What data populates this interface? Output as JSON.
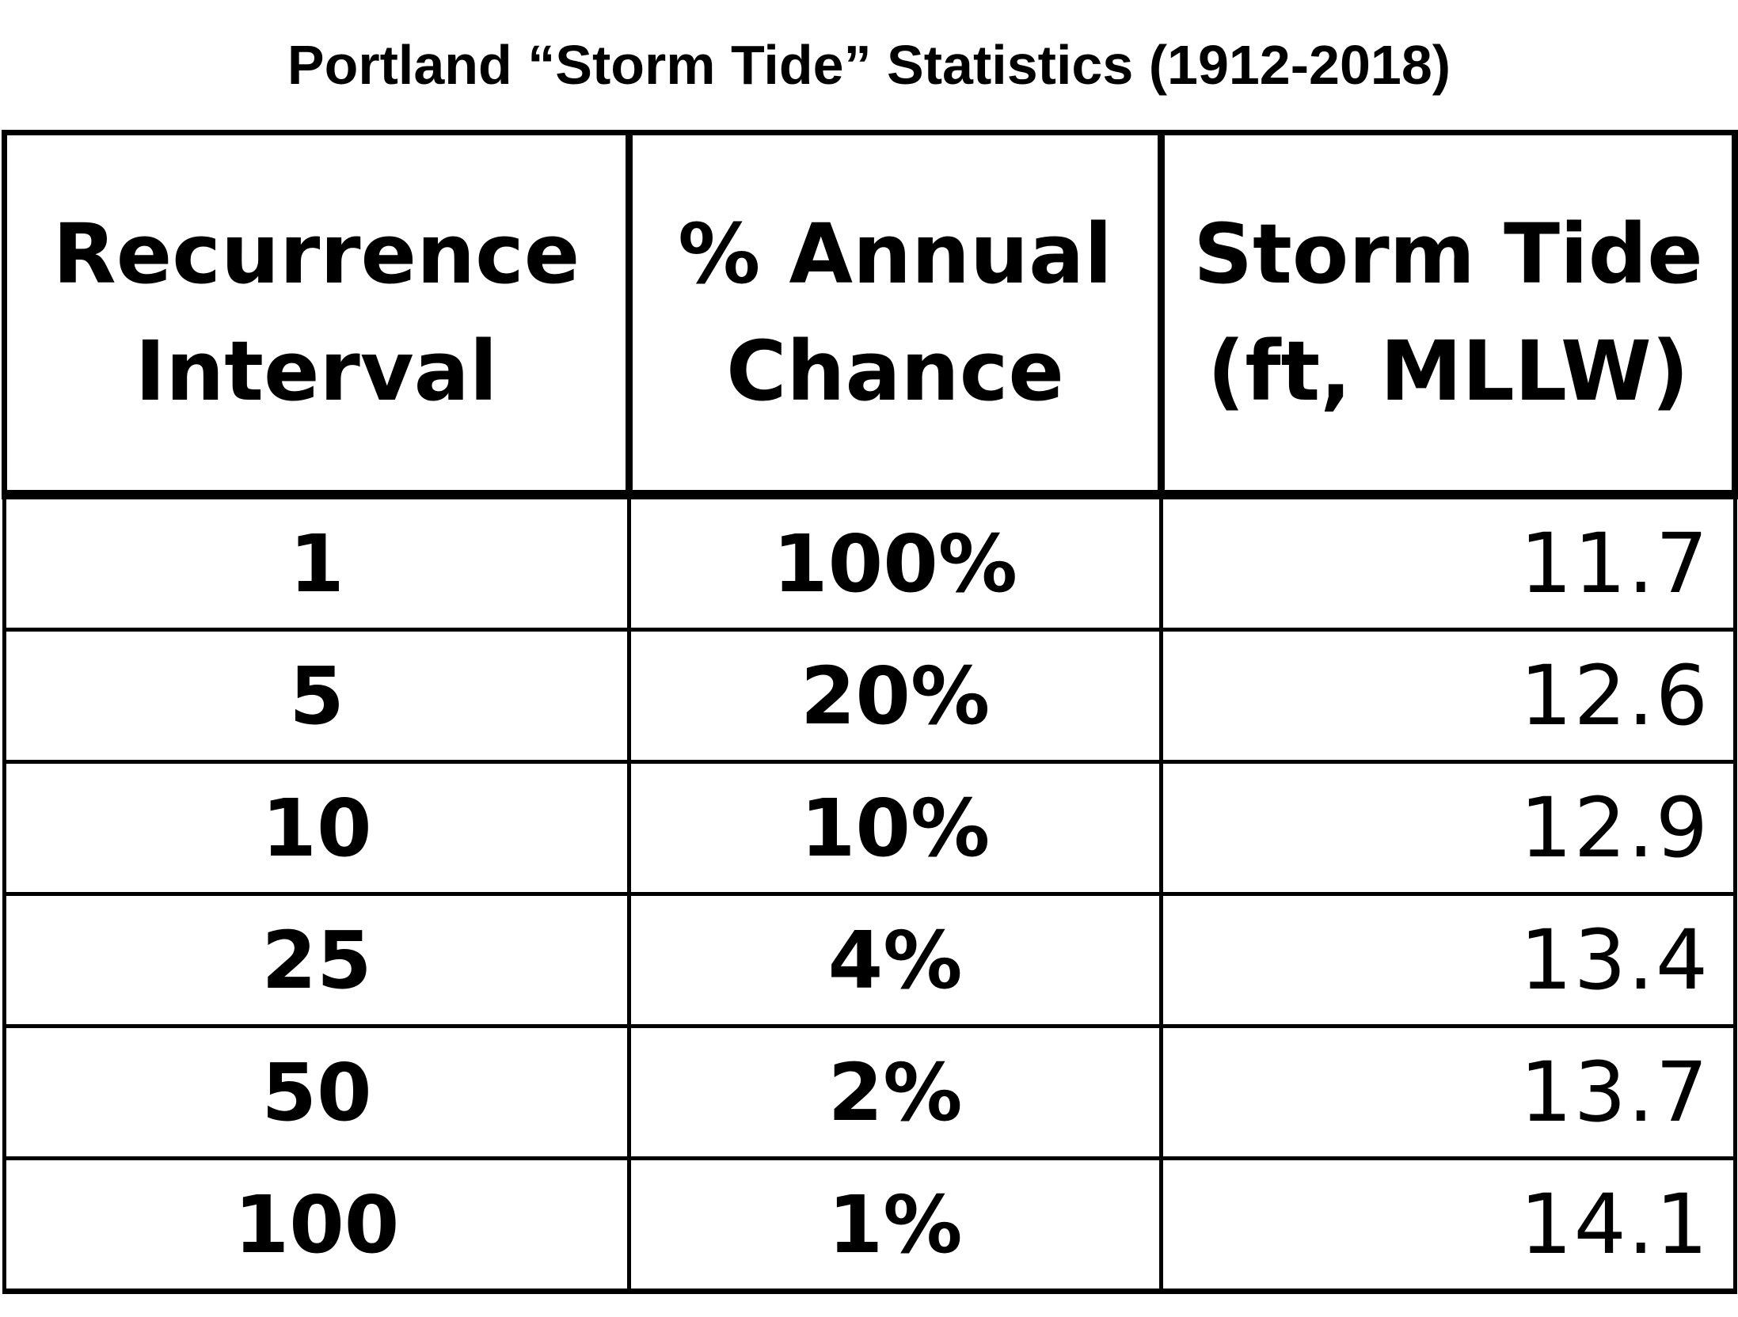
{
  "title": "Portland “Storm Tide” Statistics (1912-2018)",
  "table": {
    "headers": [
      {
        "line1": "Recurrence",
        "line2": "Interval"
      },
      {
        "line1": "% Annual",
        "line2": "Chance"
      },
      {
        "line1": "Storm Tide",
        "line2": "(ft, MLLW)"
      }
    ],
    "rows": [
      {
        "interval": "1",
        "chance": "100%",
        "tide": "11.7"
      },
      {
        "interval": "5",
        "chance": "20%",
        "tide": "12.6"
      },
      {
        "interval": "10",
        "chance": "10%",
        "tide": "12.9"
      },
      {
        "interval": "25",
        "chance": "4%",
        "tide": "13.4"
      },
      {
        "interval": "50",
        "chance": "2%",
        "tide": "13.7"
      },
      {
        "interval": "100",
        "chance": "1%",
        "tide": "14.1"
      }
    ]
  }
}
